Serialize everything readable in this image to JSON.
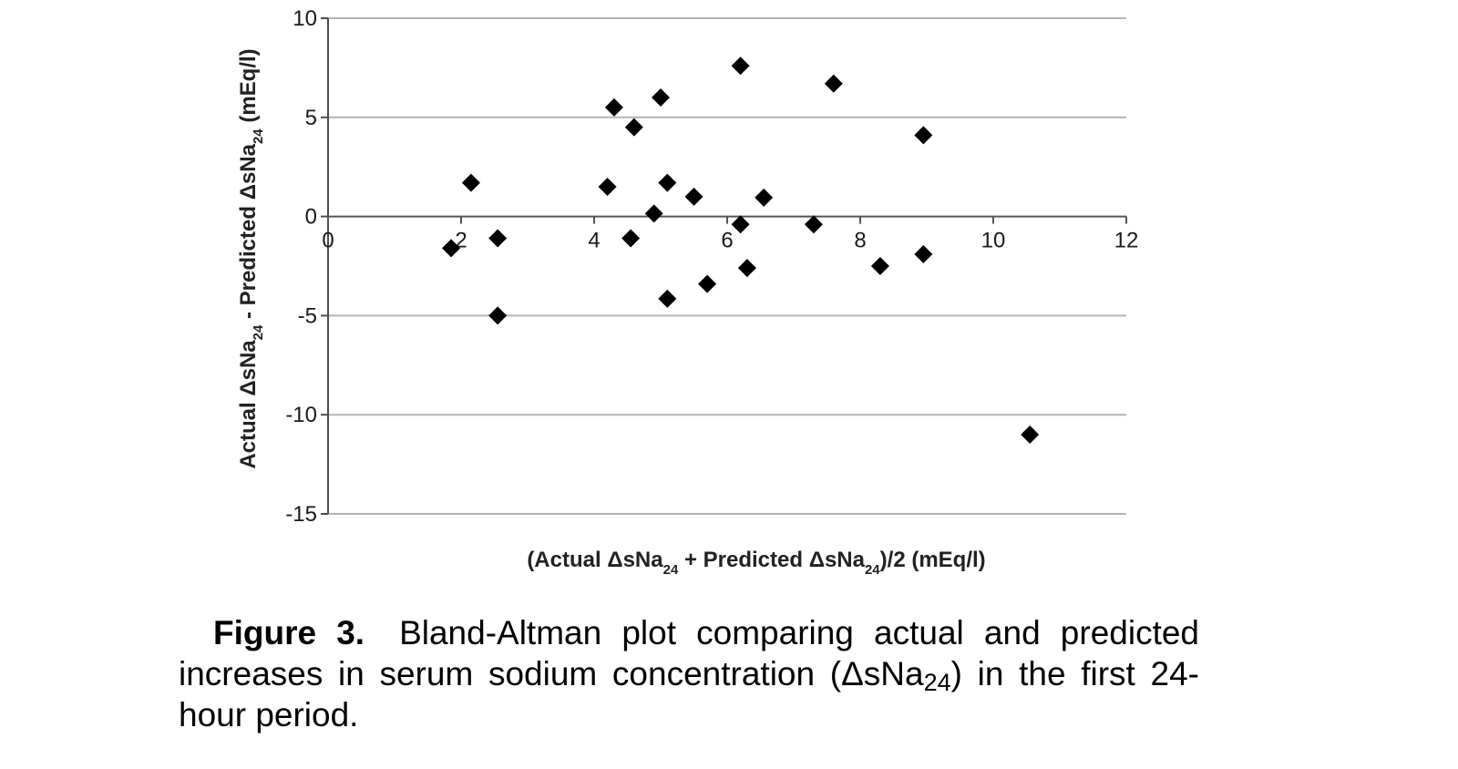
{
  "chart_data": {
    "type": "scatter",
    "xlabel": {
      "pre": "(Actual ΔsNa",
      "sub1": "24",
      "mid": " + Predicted ΔsNa",
      "sub2": "24",
      "post": ")/2 (mEq/l)"
    },
    "ylabel": {
      "pre": "Actual ΔsNa",
      "sub1": "24",
      "mid": " - Predicted ΔsNa",
      "sub2": "24",
      "post": " (mEq/l)"
    },
    "xlim": [
      0,
      12
    ],
    "ylim": [
      -15,
      10
    ],
    "x_ticks": [
      {
        "value": 0,
        "label": "0"
      },
      {
        "value": 2,
        "label": "2"
      },
      {
        "value": 4,
        "label": "4"
      },
      {
        "value": 6,
        "label": "6"
      },
      {
        "value": 8,
        "label": "8"
      },
      {
        "value": 10,
        "label": "10"
      },
      {
        "value": 12,
        "label": "12"
      }
    ],
    "y_ticks": [
      {
        "value": 10,
        "label": "10"
      },
      {
        "value": 5,
        "label": "5"
      },
      {
        "value": 0,
        "label": "0"
      },
      {
        "value": -5,
        "label": "-5"
      },
      {
        "value": -10,
        "label": "-10"
      },
      {
        "value": -15,
        "label": "-15"
      }
    ],
    "grid": "horizontal",
    "marker": "diamond",
    "marker_color": "#000000",
    "points": [
      {
        "x": 1.85,
        "y": -1.6
      },
      {
        "x": 2.15,
        "y": 1.7
      },
      {
        "x": 2.55,
        "y": -1.1
      },
      {
        "x": 2.55,
        "y": -5.0
      },
      {
        "x": 4.2,
        "y": 1.5
      },
      {
        "x": 4.3,
        "y": 5.5
      },
      {
        "x": 4.6,
        "y": 4.5
      },
      {
        "x": 4.55,
        "y": -1.1
      },
      {
        "x": 4.9,
        "y": 0.15
      },
      {
        "x": 5.0,
        "y": 6.0
      },
      {
        "x": 5.1,
        "y": 1.7
      },
      {
        "x": 5.1,
        "y": -4.15
      },
      {
        "x": 5.5,
        "y": 1.0
      },
      {
        "x": 5.7,
        "y": -3.4
      },
      {
        "x": 6.2,
        "y": 7.6
      },
      {
        "x": 6.2,
        "y": -0.4
      },
      {
        "x": 6.3,
        "y": -2.6
      },
      {
        "x": 6.55,
        "y": 0.95
      },
      {
        "x": 7.3,
        "y": -0.4
      },
      {
        "x": 7.6,
        "y": 6.7
      },
      {
        "x": 8.3,
        "y": -2.5
      },
      {
        "x": 8.95,
        "y": 4.1
      },
      {
        "x": 8.95,
        "y": -1.9
      },
      {
        "x": 10.55,
        "y": -11.0
      }
    ]
  },
  "caption": {
    "label": "Figure 3.",
    "text_pre": "Bland-Altman plot comparing actual and predicted increases in serum sodium concentration (ΔsNa",
    "text_sub": "24",
    "text_post": ") in the first 24-hour period."
  }
}
